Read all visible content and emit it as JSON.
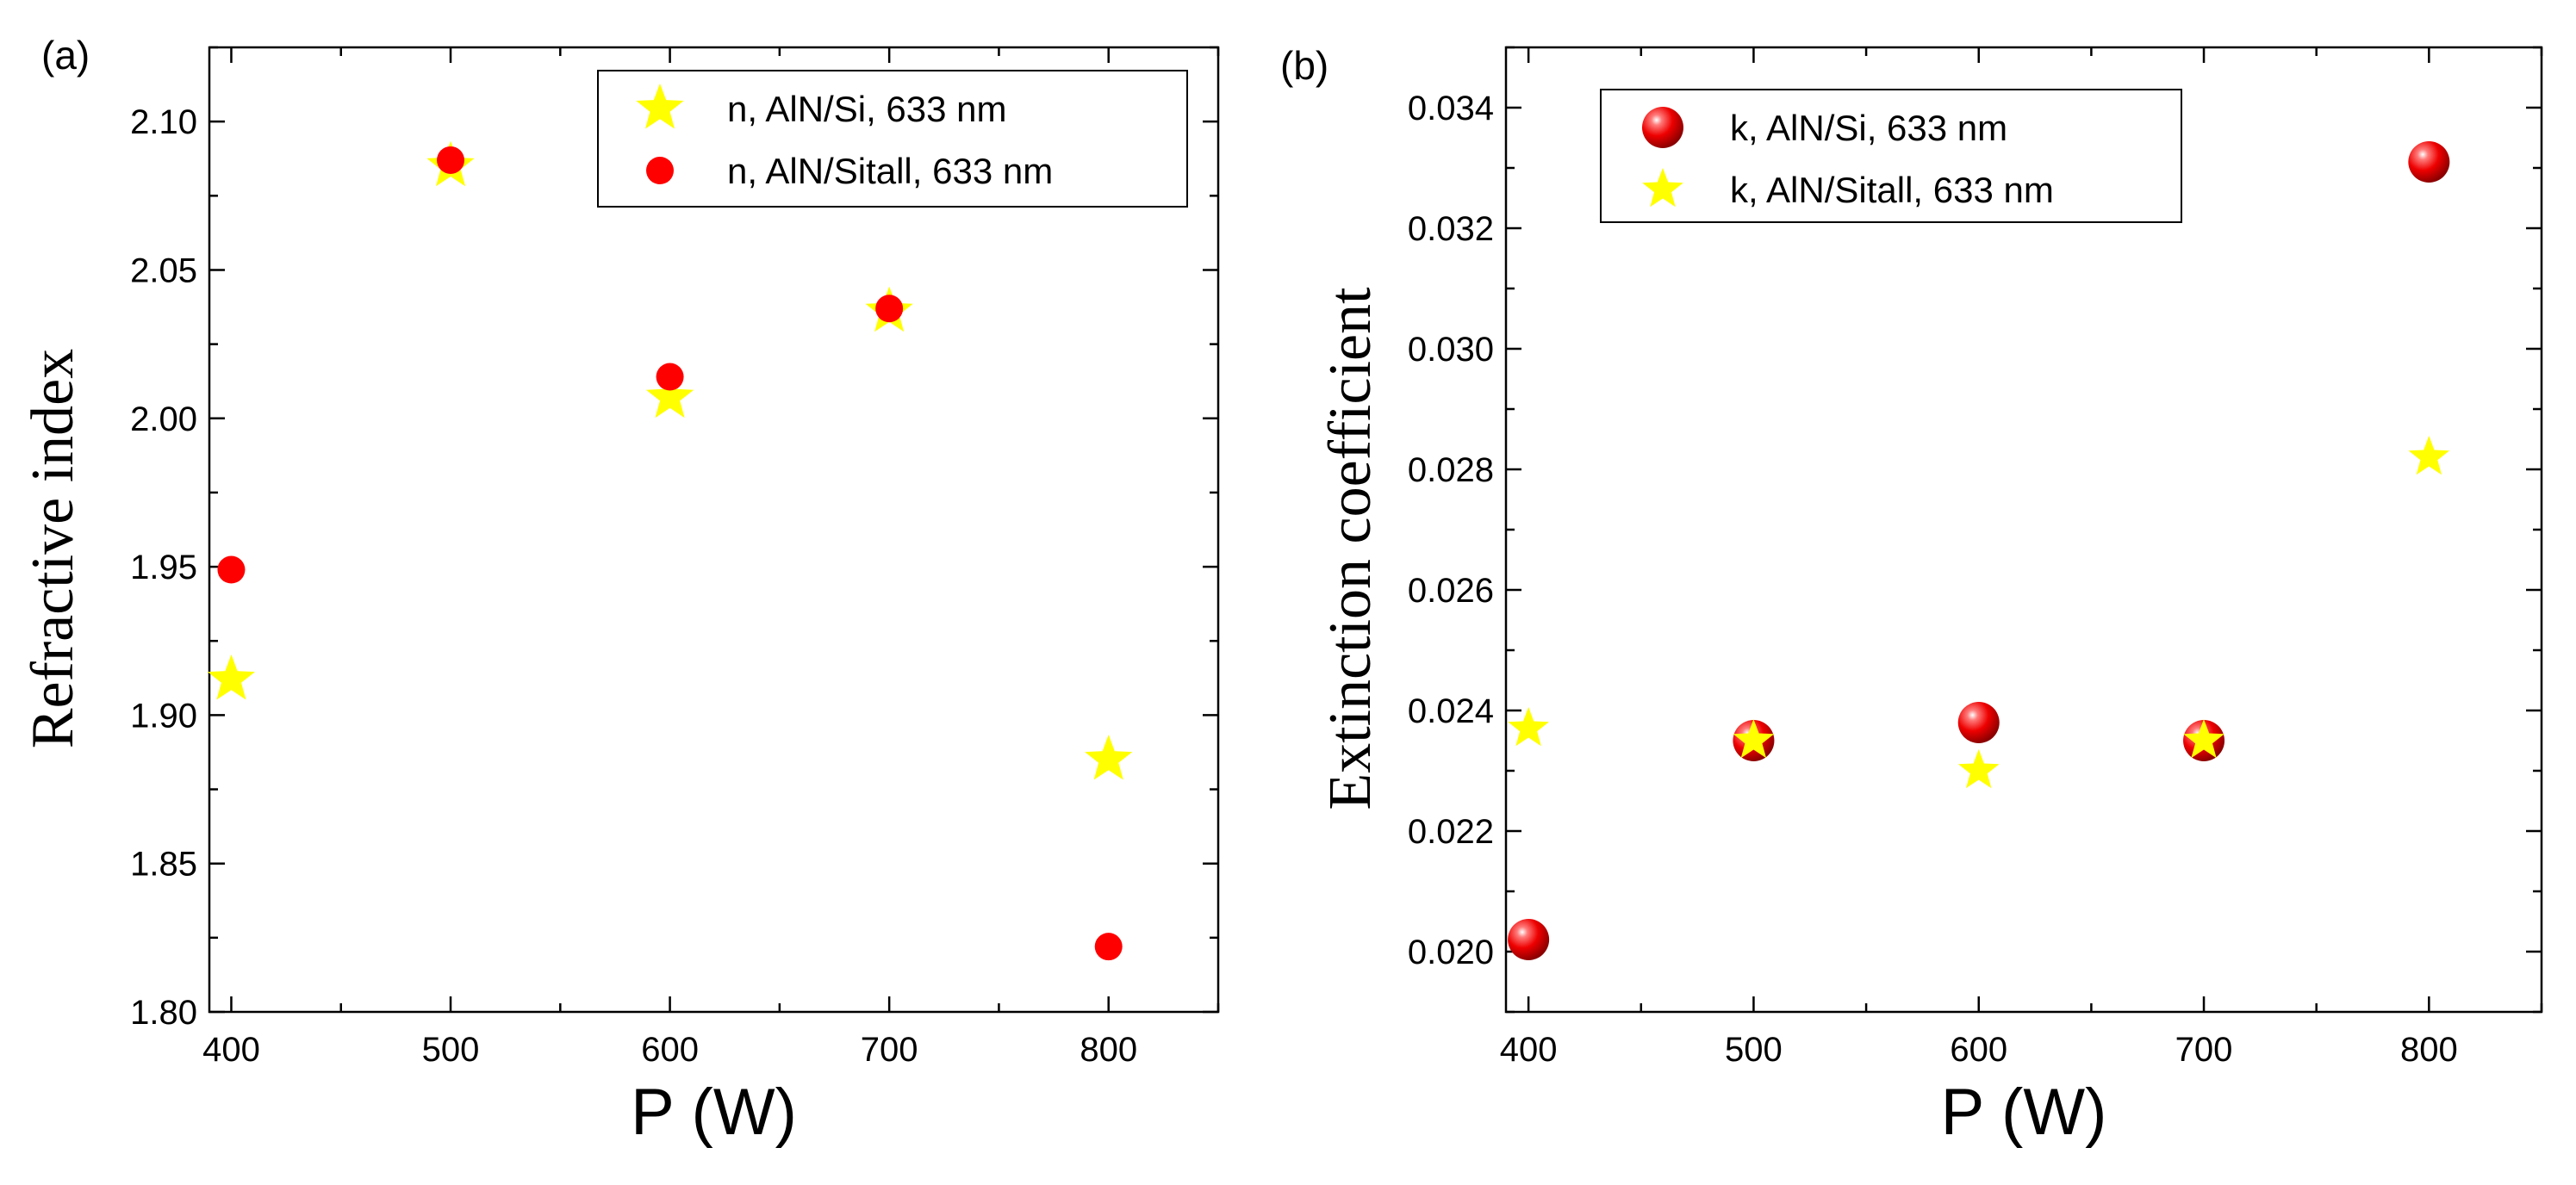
{
  "chart_data": [
    {
      "type": "scatter",
      "panel_label": "(a)",
      "title": "",
      "xlabel": "P (W)",
      "ylabel": "Refractive index",
      "xlim": [
        390,
        850
      ],
      "ylim": [
        1.8,
        2.125
      ],
      "x_ticks": [
        400,
        500,
        600,
        700,
        800
      ],
      "x_tick_labels": [
        "400",
        "500",
        "600",
        "700",
        "800"
      ],
      "y_ticks": [
        1.8,
        1.85,
        1.9,
        1.95,
        2.0,
        2.05,
        2.1
      ],
      "y_tick_labels": [
        "1.80",
        "1.85",
        "1.90",
        "1.95",
        "2.00",
        "2.05",
        "2.10"
      ],
      "grid": false,
      "legend_position": "top-right",
      "series": [
        {
          "name": "n, AlN/Si, 633 nm",
          "marker": "star",
          "color": "#ffff00",
          "x": [
            400,
            500,
            600,
            700,
            800
          ],
          "y": [
            1.912,
            2.085,
            2.007,
            2.036,
            1.885
          ]
        },
        {
          "name": "n, AlN/Sitall, 633 nm",
          "marker": "circle",
          "color": "#ff0000",
          "x": [
            400,
            500,
            600,
            700,
            800
          ],
          "y": [
            1.949,
            2.087,
            2.014,
            2.037,
            1.822
          ]
        }
      ]
    },
    {
      "type": "scatter",
      "panel_label": "(b)",
      "title": "",
      "xlabel": "P (W)",
      "ylabel": "Extinction coefficient",
      "xlim": [
        390,
        850
      ],
      "ylim": [
        0.019,
        0.035
      ],
      "x_ticks": [
        400,
        500,
        600,
        700,
        800
      ],
      "x_tick_labels": [
        "400",
        "500",
        "600",
        "700",
        "800"
      ],
      "y_ticks": [
        0.02,
        0.022,
        0.024,
        0.026,
        0.028,
        0.03,
        0.032,
        0.034
      ],
      "y_tick_labels": [
        "0.020",
        "0.022",
        "0.024",
        "0.026",
        "0.028",
        "0.030",
        "0.032",
        "0.034"
      ],
      "grid": false,
      "legend_position": "top-right",
      "series": [
        {
          "name": "k, AlN/Si, 633 nm",
          "marker": "sphere",
          "color": "#ff0000",
          "x": [
            400,
            500,
            600,
            700,
            800
          ],
          "y": [
            0.0202,
            0.0235,
            0.0238,
            0.0235,
            0.0331
          ]
        },
        {
          "name": "k, AlN/Sitall, 633 nm",
          "marker": "star",
          "color": "#ffff00",
          "x": [
            400,
            500,
            600,
            700,
            800
          ],
          "y": [
            0.0237,
            0.0235,
            0.023,
            0.0235,
            0.0282
          ]
        }
      ]
    }
  ]
}
